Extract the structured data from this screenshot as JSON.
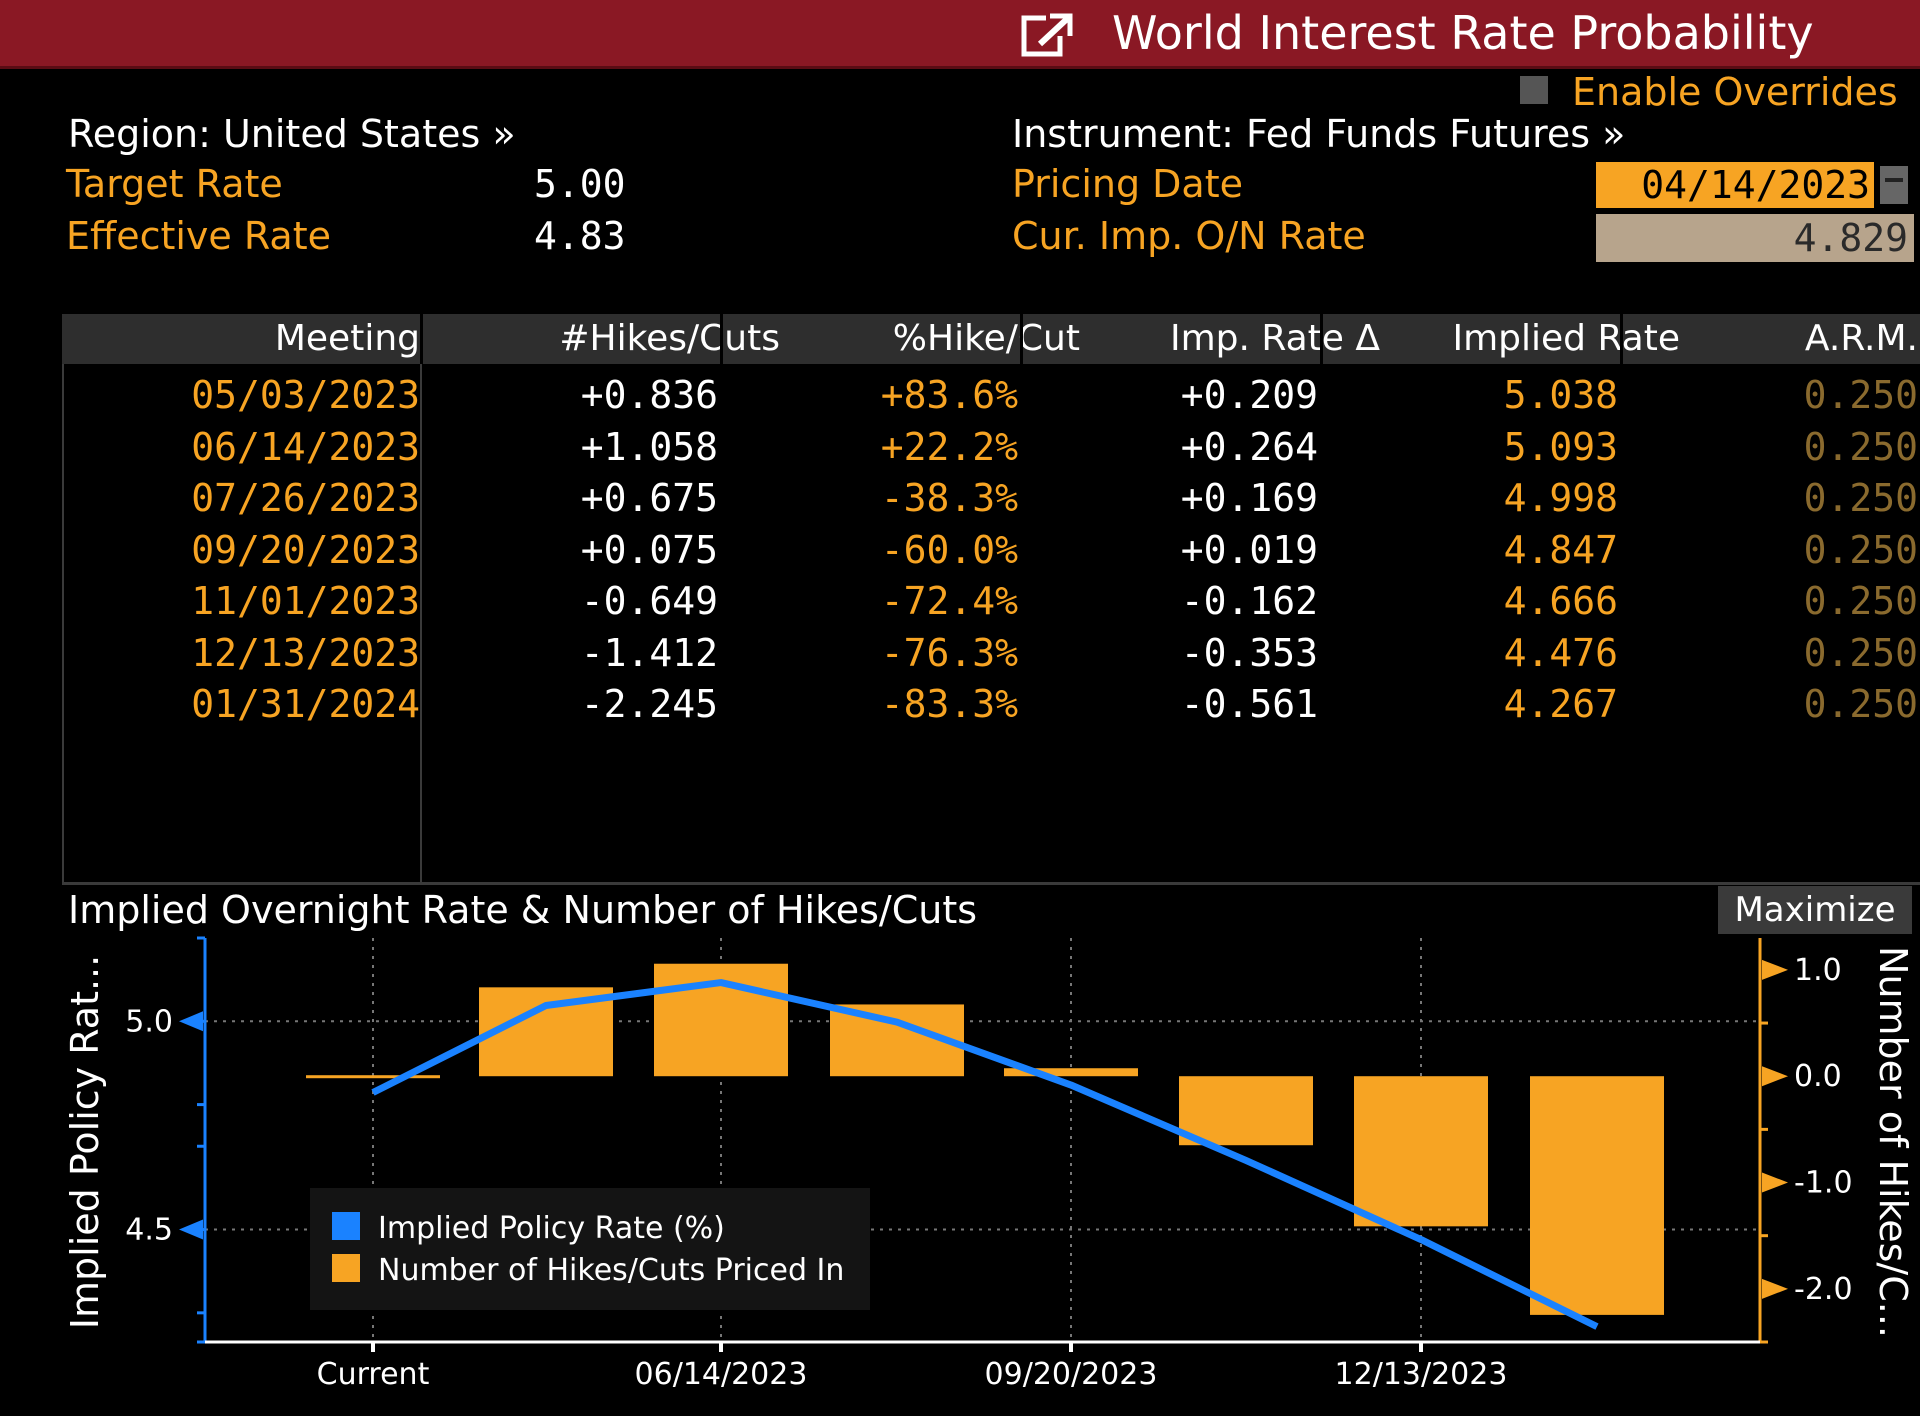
{
  "window": {
    "title": "World Interest Rate Probability",
    "overrides_label": "Enable Overrides"
  },
  "header": {
    "region_label": "Region: United States »",
    "instrument_label": "Instrument: Fed Funds Futures »",
    "target_rate_label": "Target Rate",
    "target_rate_value": "5.00",
    "effective_rate_label": "Effective Rate",
    "effective_rate_value": "4.83",
    "pricing_date_label": "Pricing Date",
    "pricing_date_value": "04/14/2023",
    "ovn_rate_label": "Cur. Imp. O/N Rate",
    "ovn_rate_value": "4.829"
  },
  "table": {
    "columns": [
      "Meeting",
      "#Hikes/Cuts",
      "%Hike/Cut",
      "Imp. Rate Δ",
      "Implied Rate",
      "A.R.M."
    ],
    "rows": [
      [
        "05/03/2023",
        "+0.836",
        "+83.6%",
        "+0.209",
        "5.038",
        "0.250"
      ],
      [
        "06/14/2023",
        "+1.058",
        "+22.2%",
        "+0.264",
        "5.093",
        "0.250"
      ],
      [
        "07/26/2023",
        "+0.675",
        "-38.3%",
        "+0.169",
        "4.998",
        "0.250"
      ],
      [
        "09/20/2023",
        "+0.075",
        "-60.0%",
        "+0.019",
        "4.847",
        "0.250"
      ],
      [
        "11/01/2023",
        "-0.649",
        "-72.4%",
        "-0.162",
        "4.666",
        "0.250"
      ],
      [
        "12/13/2023",
        "-1.412",
        "-76.3%",
        "-0.353",
        "4.476",
        "0.250"
      ],
      [
        "01/31/2024",
        "-2.245",
        "-83.3%",
        "-0.561",
        "4.267",
        "0.250"
      ]
    ]
  },
  "chart_panel": {
    "title": "Implied Overnight Rate & Number of Hikes/Cuts",
    "maximize_label": "Maximize"
  },
  "chart_data": {
    "type": "bar",
    "categories": [
      "Current",
      "05/03/2023",
      "06/14/2023",
      "07/26/2023",
      "09/20/2023",
      "11/01/2023",
      "12/13/2023",
      "01/31/2024"
    ],
    "x_tick_labels": [
      "Current",
      "06/14/2023",
      "09/20/2023",
      "12/13/2023"
    ],
    "ylabel_left": "Implied Policy Rat...",
    "ylabel_right": "Number of Hikes/C...",
    "left_ticks": [
      "5.0",
      "4.5"
    ],
    "right_ticks": [
      "1.0",
      "0.0",
      "-1.0",
      "-2.0"
    ],
    "ylim_left": [
      4.23,
      5.2
    ],
    "ylim_right": [
      -2.5,
      1.3
    ],
    "grid": true,
    "legend_position": "bottom-left",
    "series": [
      {
        "name": "Implied Policy Rate (%)",
        "type": "line",
        "axis": "left",
        "color": "#1a82ff",
        "values": [
          4.829,
          5.038,
          5.093,
          4.998,
          4.847,
          4.666,
          4.476,
          4.267
        ]
      },
      {
        "name": "Number of Hikes/Cuts Priced In",
        "type": "bar",
        "axis": "right",
        "color": "#f7a423",
        "values": [
          0.0,
          0.836,
          1.058,
          0.675,
          0.075,
          -0.649,
          -1.412,
          -2.245
        ]
      }
    ]
  },
  "colors": {
    "title_bar": "#8a1824",
    "accent_orange": "#f7a423",
    "line_blue": "#1a82ff"
  }
}
